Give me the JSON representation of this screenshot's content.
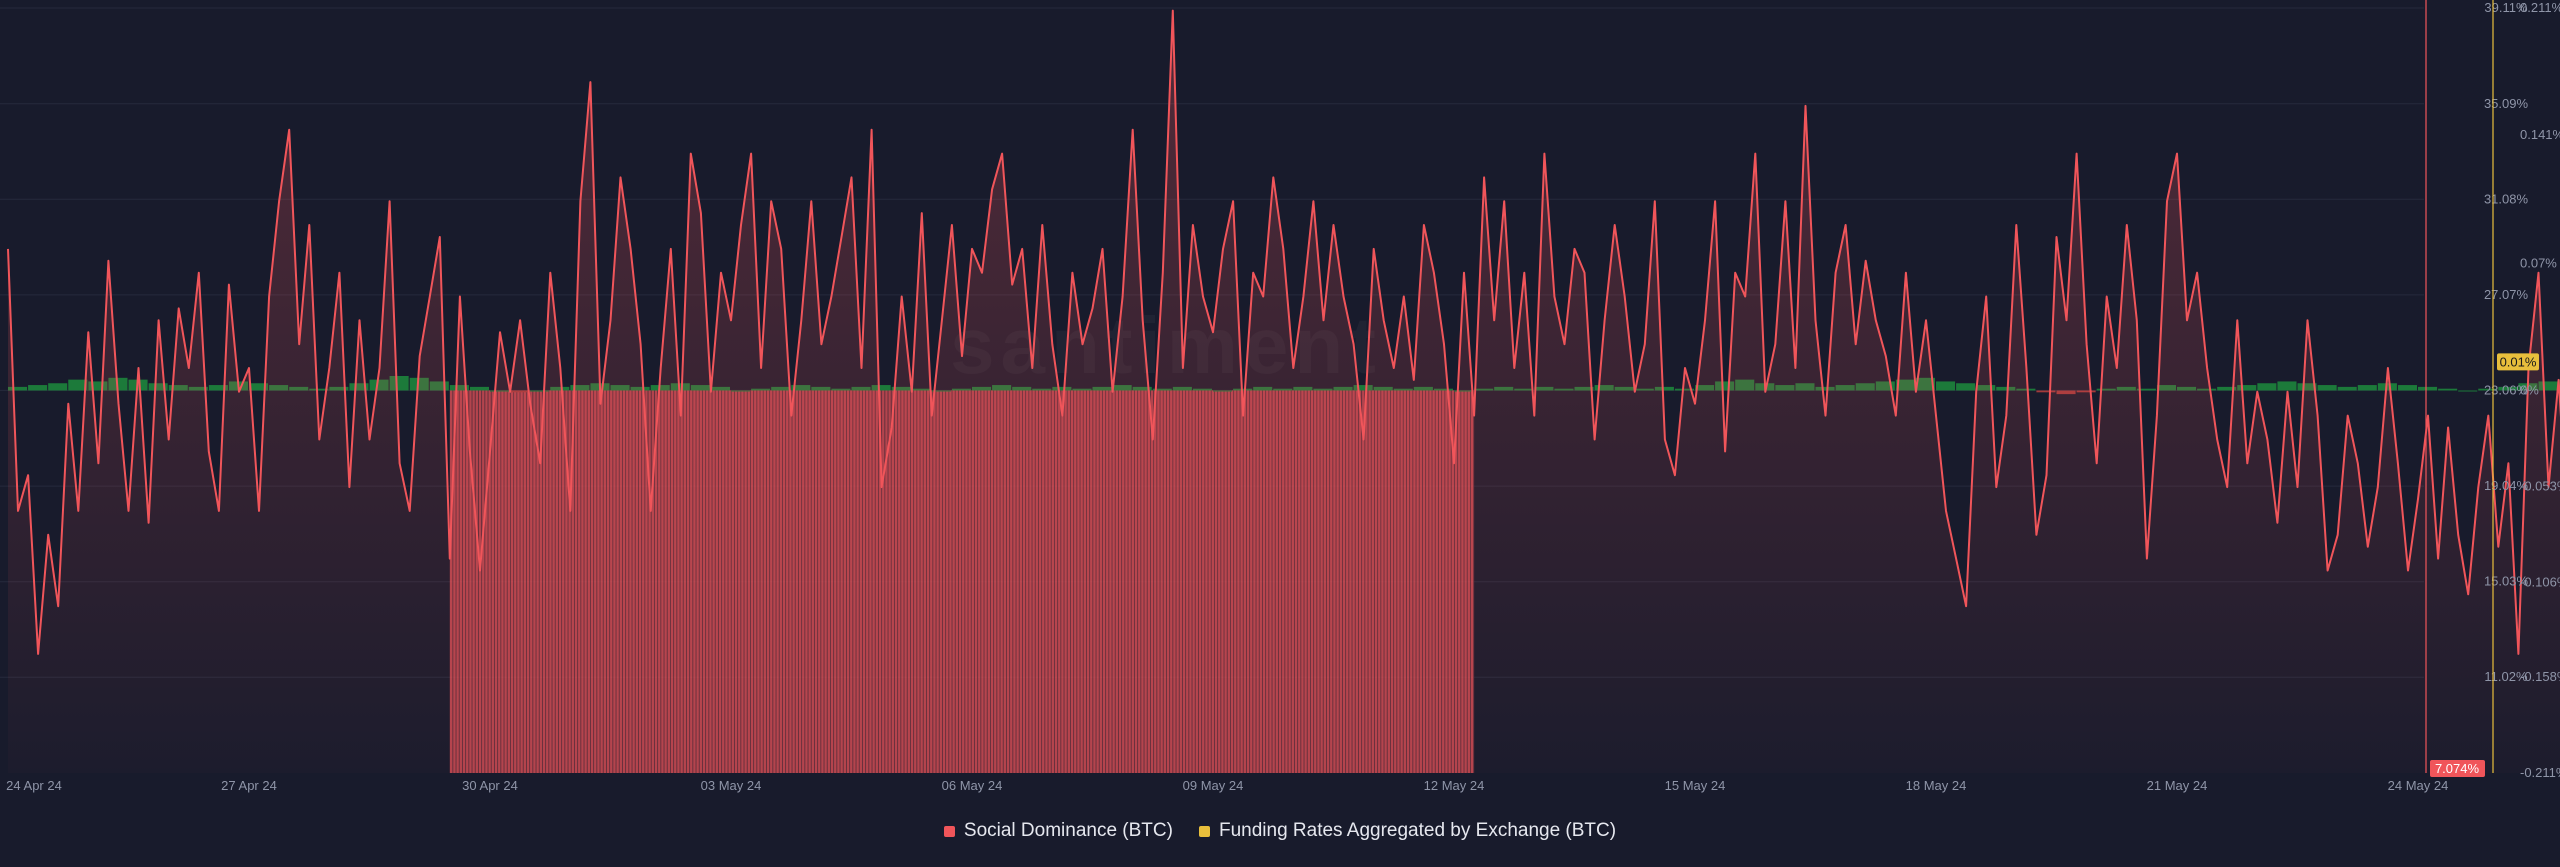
{
  "colors": {
    "social": "#f0555a",
    "funding": "#e8bf3c",
    "funding_positive": "#1c7a3a",
    "funding_negative": "#a33a3a",
    "grid": "#262a3c",
    "background": "#181b2c"
  },
  "legend": {
    "social_label": "Social Dominance (BTC)",
    "funding_label": "Funding Rates Aggregated by Exchange (BTC)"
  },
  "watermark": "santiment",
  "current_values": {
    "social": "7.074%",
    "funding": "0.01%"
  },
  "chart_data": {
    "type": "line",
    "x_ticks": [
      "24 Apr 24",
      "27 Apr 24",
      "30 Apr 24",
      "03 May 24",
      "06 May 24",
      "09 May 24",
      "12 May 24",
      "15 May 24",
      "18 May 24",
      "21 May 24",
      "24 May 24"
    ],
    "x_range_days": [
      0,
      30
    ],
    "y_left": {
      "label": "Social Dominance (BTC)",
      "unit": "%",
      "range": [
        7.0,
        39.11
      ],
      "ticks": [
        "39.11%",
        "35.09%",
        "31.08%",
        "27.07%",
        "23.06%",
        "19.04%",
        "15.03%",
        "11.02%"
      ]
    },
    "y_right": {
      "label": "Funding Rates Aggregated by Exchange (BTC)",
      "unit": "%",
      "range": [
        -0.211,
        0.211
      ],
      "ticks": [
        "0.211%",
        "0.141%",
        "0.07%",
        "0%",
        "-0.053%",
        "-0.106%",
        "-0.158%",
        "-0.211%"
      ]
    },
    "series": [
      {
        "name": "Social Dominance (BTC)",
        "axis": "left",
        "step_days": 0.125,
        "values": [
          29.0,
          18.0,
          19.5,
          12.0,
          17.0,
          14.0,
          22.5,
          18.0,
          25.5,
          20.0,
          28.5,
          22.5,
          18.0,
          24.0,
          17.5,
          26.0,
          21.0,
          26.5,
          24.0,
          28.0,
          20.5,
          18.0,
          27.5,
          23.0,
          24.0,
          18.0,
          27.0,
          31.0,
          34.0,
          25.0,
          30.0,
          21.0,
          24.0,
          28.0,
          19.0,
          26.0,
          21.0,
          24.0,
          31.0,
          20.0,
          18.0,
          24.5,
          27.0,
          29.5,
          16.0,
          27.0,
          20.5,
          15.5,
          20.5,
          25.5,
          23.0,
          26.0,
          22.5,
          20.0,
          28.0,
          24.0,
          18.0,
          31.0,
          36.0,
          22.5,
          26.0,
          32.0,
          29.0,
          25.0,
          18.0,
          24.0,
          29.0,
          22.0,
          33.0,
          30.5,
          23.0,
          28.0,
          26.0,
          30.0,
          33.0,
          24.0,
          31.0,
          29.0,
          22.0,
          26.0,
          31.0,
          25.0,
          27.0,
          29.5,
          32.0,
          24.0,
          34.0,
          19.0,
          21.5,
          27.0,
          23.0,
          30.5,
          22.0,
          26.0,
          30.0,
          24.5,
          29.0,
          28.0,
          31.5,
          33.0,
          27.5,
          29.0,
          24.0,
          30.0,
          25.0,
          22.0,
          28.0,
          25.0,
          26.5,
          29.0,
          23.0,
          27.0,
          34.0,
          26.0,
          21.0,
          28.0,
          39.0,
          24.0,
          30.0,
          27.0,
          25.5,
          29.0,
          31.0,
          22.0,
          28.0,
          27.0,
          32.0,
          29.0,
          24.0,
          27.0,
          31.0,
          26.0,
          30.0,
          27.0,
          25.0,
          21.0,
          29.0,
          26.0,
          24.0,
          27.0,
          23.5,
          30.0,
          28.0,
          25.0,
          20.0,
          28.0,
          22.0,
          32.0,
          26.0,
          31.0,
          24.0,
          28.0,
          22.0,
          33.0,
          27.0,
          25.0,
          29.0,
          28.0,
          21.0,
          26.0,
          30.0,
          27.0,
          23.0,
          25.0,
          31.0,
          21.0,
          19.5,
          24.0,
          22.5,
          26.0,
          31.0,
          20.5,
          28.0,
          27.0,
          33.0,
          23.0,
          25.0,
          31.0,
          24.0,
          35.0,
          26.0,
          22.0,
          28.0,
          30.0,
          25.0,
          28.5,
          26.0,
          24.5,
          22.0,
          28.0,
          23.0,
          26.0,
          22.0,
          18.0,
          16.0,
          14.0,
          23.0,
          27.0,
          19.0,
          22.0,
          30.0,
          24.0,
          17.0,
          19.5,
          29.5,
          26.0,
          33.0,
          25.0,
          20.0,
          27.0,
          24.0,
          30.0,
          26.0,
          16.0,
          22.0,
          31.0,
          33.0,
          26.0,
          28.0,
          24.0,
          21.0,
          19.0,
          26.0,
          20.0,
          23.0,
          21.0,
          17.5,
          23.0,
          19.0,
          26.0,
          22.0,
          15.5,
          17.0,
          22.0,
          20.0,
          16.5,
          19.0,
          24.0,
          20.0,
          15.5,
          18.5,
          22.0,
          16.0,
          21.5,
          17.0,
          14.5,
          19.0,
          22.0,
          16.5,
          20.0,
          12.0,
          24.0,
          28.0,
          19.0,
          23.5,
          17.0,
          20.0,
          16.0,
          24.0,
          26.0,
          19.0,
          22.0,
          17.0,
          25.0,
          18.0,
          20.5,
          15.0,
          17.0,
          19.0,
          22.0,
          24.0,
          19.0,
          17.5,
          21.0,
          15.0,
          22.0,
          27.0,
          20.0,
          23.0,
          18.0,
          16.0,
          24.0,
          18.0,
          20.5,
          14.0,
          19.0,
          16.5,
          22.0,
          13.0,
          21.0,
          17.0,
          19.0,
          16.0,
          15.0,
          7.07
        ]
      },
      {
        "name": "Funding Rates Aggregated by Exchange (BTC)",
        "axis": "right",
        "step_days": 0.25,
        "values": [
          0.002,
          0.003,
          0.004,
          0.006,
          0.005,
          0.007,
          0.006,
          0.004,
          0.003,
          0.002,
          0.003,
          0.005,
          0.004,
          0.003,
          0.002,
          0.001,
          0.002,
          0.004,
          0.006,
          0.008,
          0.007,
          0.005,
          0.003,
          0.002,
          0.0,
          -0.001,
          0.0,
          0.002,
          0.003,
          0.004,
          0.003,
          0.002,
          0.003,
          0.004,
          0.003,
          0.002,
          0.0,
          0.001,
          0.002,
          0.003,
          0.002,
          0.001,
          0.002,
          0.003,
          0.002,
          0.001,
          0.0,
          0.001,
          0.002,
          0.003,
          0.002,
          0.001,
          0.002,
          0.001,
          0.002,
          0.003,
          0.002,
          0.001,
          0.002,
          0.001,
          0.0,
          0.001,
          0.002,
          0.001,
          0.002,
          0.001,
          0.002,
          0.003,
          0.002,
          0.001,
          0.002,
          0.001,
          0.0,
          0.001,
          0.002,
          0.001,
          0.002,
          0.001,
          0.002,
          0.003,
          0.002,
          0.001,
          0.002,
          0.001,
          0.003,
          0.005,
          0.006,
          0.004,
          0.003,
          0.004,
          0.002,
          0.003,
          0.004,
          0.005,
          0.006,
          0.007,
          0.005,
          0.004,
          0.003,
          0.002,
          0.001,
          -0.001,
          -0.002,
          -0.001,
          0.001,
          0.002,
          0.001,
          0.003,
          0.002,
          0.001,
          0.002,
          0.003,
          0.004,
          0.005,
          0.004,
          0.003,
          0.002,
          0.003,
          0.004,
          0.003,
          0.002,
          0.001,
          0.0,
          0.001,
          0.002,
          0.004,
          0.005,
          0.006,
          0.008,
          0.007,
          0.006,
          0.007,
          0.008,
          0.009,
          0.01,
          0.009,
          0.008,
          0.009,
          0.01,
          0.011
        ]
      }
    ],
    "highlight": {
      "start_day": 5.5,
      "end_day": 18.25,
      "top_value": 23.06
    },
    "grid": true,
    "legend_position": "bottom-center"
  }
}
